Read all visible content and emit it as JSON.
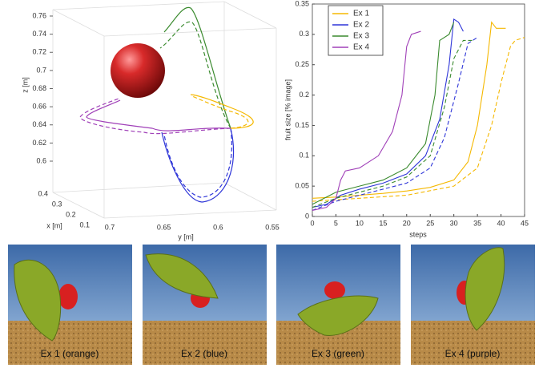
{
  "plot3d": {
    "zlabel": "z [m]",
    "xlabel": "x [m]",
    "ylabel": "y [m]",
    "zticks": [
      0.6,
      0.62,
      0.64,
      0.66,
      0.68,
      0.7,
      0.72,
      0.74,
      0.76
    ],
    "xticks": [
      0.4,
      0.3,
      0.2,
      0.1
    ],
    "yticks": [
      0.7,
      0.65,
      0.6,
      0.55
    ]
  },
  "chart_data": {
    "type": "line",
    "xlabel": "steps",
    "ylabel": "fruit size [% image]",
    "xlim": [
      0,
      45
    ],
    "ylim": [
      0,
      0.35
    ],
    "xticks": [
      0,
      5,
      10,
      15,
      20,
      25,
      30,
      35,
      40,
      45
    ],
    "yticks": [
      0,
      0.05,
      0.1,
      0.15,
      0.2,
      0.25,
      0.3,
      0.35
    ],
    "legend": "upper left",
    "series": [
      {
        "name": "Ex 1",
        "color": "#f5b800",
        "solid": {
          "x": [
            0,
            5,
            10,
            15,
            20,
            25,
            30,
            33,
            35,
            37,
            38,
            39,
            41
          ],
          "values": [
            0.03,
            0.032,
            0.035,
            0.038,
            0.042,
            0.048,
            0.06,
            0.09,
            0.15,
            0.25,
            0.32,
            0.31,
            0.31
          ]
        },
        "dashed": {
          "x": [
            0,
            10,
            20,
            30,
            35,
            38,
            40,
            42,
            43,
            45
          ],
          "values": [
            0.025,
            0.03,
            0.035,
            0.05,
            0.08,
            0.15,
            0.22,
            0.28,
            0.29,
            0.295
          ]
        }
      },
      {
        "name": "Ex 2",
        "color": "#2e35d8",
        "solid": {
          "x": [
            0,
            3,
            6,
            10,
            15,
            20,
            24,
            27,
            29,
            30,
            31,
            32
          ],
          "values": [
            0.015,
            0.02,
            0.035,
            0.045,
            0.055,
            0.07,
            0.1,
            0.16,
            0.25,
            0.325,
            0.32,
            0.305
          ]
        },
        "dashed": {
          "x": [
            0,
            5,
            10,
            15,
            20,
            25,
            28,
            31,
            33,
            35
          ],
          "values": [
            0.01,
            0.025,
            0.035,
            0.045,
            0.055,
            0.08,
            0.13,
            0.22,
            0.285,
            0.295
          ]
        }
      },
      {
        "name": "Ex 3",
        "color": "#3a8a2e",
        "solid": {
          "x": [
            0,
            5,
            10,
            15,
            20,
            24,
            26,
            27,
            29,
            30
          ],
          "values": [
            0.02,
            0.04,
            0.05,
            0.06,
            0.08,
            0.12,
            0.2,
            0.29,
            0.3,
            0.32
          ]
        },
        "dashed": {
          "x": [
            0,
            5,
            10,
            15,
            20,
            25,
            28,
            30,
            32,
            34
          ],
          "values": [
            0.015,
            0.03,
            0.04,
            0.05,
            0.065,
            0.1,
            0.18,
            0.26,
            0.29,
            0.29
          ]
        }
      },
      {
        "name": "Ex 4",
        "color": "#a040b8",
        "solid": {
          "x": [
            0,
            3,
            5,
            6,
            7,
            10,
            14,
            17,
            19,
            20,
            21,
            23
          ],
          "values": [
            0.01,
            0.015,
            0.03,
            0.06,
            0.075,
            0.08,
            0.1,
            0.14,
            0.2,
            0.28,
            0.3,
            0.305
          ]
        }
      }
    ]
  },
  "images": [
    {
      "caption": "Ex 1 (orange)"
    },
    {
      "caption": "Ex 2 (blue)"
    },
    {
      "caption": "Ex 3 (green)"
    },
    {
      "caption": "Ex 4 (purple)"
    }
  ]
}
